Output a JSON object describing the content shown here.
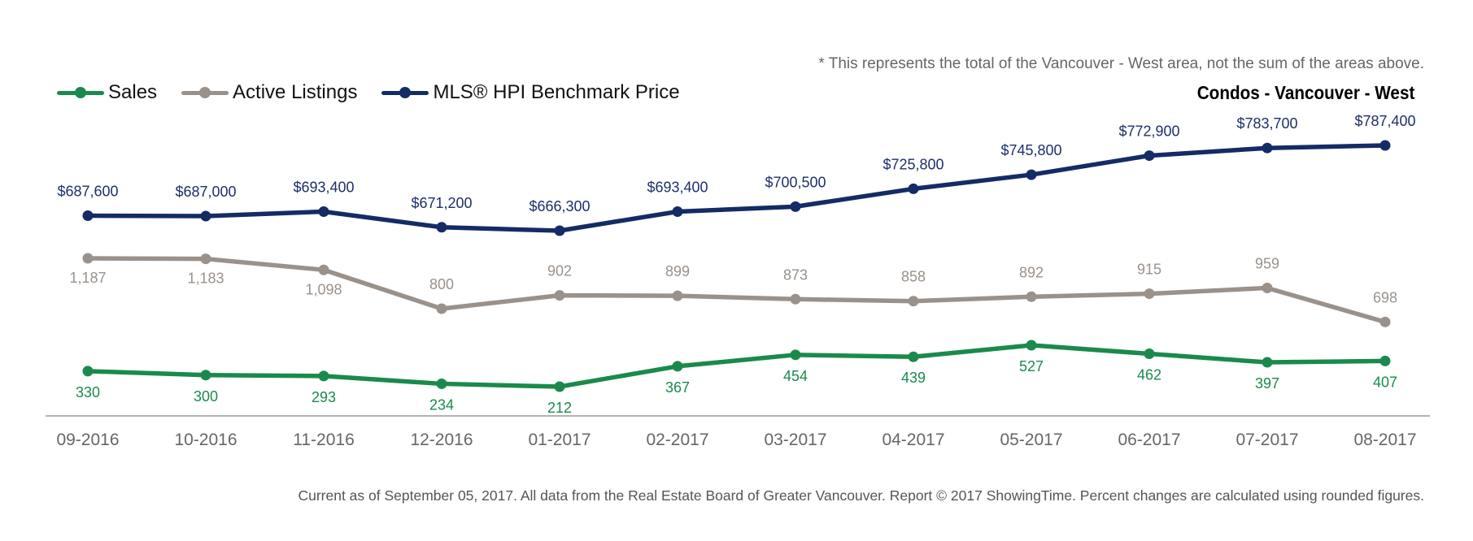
{
  "colors": {
    "sales": "#1a8a4c",
    "listings": "#9a918a",
    "price": "#142b65",
    "axis": "#999999",
    "tick_text": "#666666"
  },
  "header": {
    "note": "* This represents the total of the Vancouver - West area, not the sum of the areas above.",
    "subtitle": "Condos - Vancouver - West"
  },
  "legend": {
    "items": [
      {
        "label": "Sales",
        "color": "#1a8a4c"
      },
      {
        "label": "Active Listings",
        "color": "#9a918a"
      },
      {
        "label": "MLS® HPI Benchmark Price",
        "color": "#142b65"
      }
    ]
  },
  "footer": {
    "text": "Current as of September 05, 2017. All data from the Real Estate Board of Greater Vancouver. Report © 2017 ShowingTime. Percent changes are calculated using rounded figures."
  },
  "chart_data": {
    "type": "line",
    "title": "Condos - Vancouver - West",
    "legend_position": "top-left",
    "grid": false,
    "categories": [
      "09-2016",
      "10-2016",
      "11-2016",
      "12-2016",
      "01-2017",
      "02-2017",
      "03-2017",
      "04-2017",
      "05-2017",
      "06-2017",
      "07-2017",
      "08-2017"
    ],
    "series": [
      {
        "name": "MLS® HPI Benchmark Price",
        "values": [
          687600,
          687000,
          693400,
          671200,
          666300,
          693400,
          700500,
          725800,
          745800,
          772900,
          783700,
          787400
        ],
        "labels": [
          "$687,600",
          "$687,000",
          "$693,400",
          "$671,200",
          "$666,300",
          "$693,400",
          "$700,500",
          "$725,800",
          "$745,800",
          "$772,900",
          "$783,700",
          "$787,400"
        ]
      },
      {
        "name": "Active Listings",
        "values": [
          1187,
          1183,
          1098,
          800,
          902,
          899,
          873,
          858,
          892,
          915,
          959,
          698
        ],
        "labels": [
          "1,187",
          "1,183",
          "1,098",
          "800",
          "902",
          "899",
          "873",
          "858",
          "892",
          "915",
          "959",
          "698"
        ]
      },
      {
        "name": "Sales",
        "values": [
          330,
          300,
          293,
          234,
          212,
          367,
          454,
          439,
          527,
          462,
          397,
          407
        ],
        "labels": [
          "330",
          "300",
          "293",
          "234",
          "212",
          "367",
          "454",
          "439",
          "527",
          "462",
          "397",
          "407"
        ]
      }
    ]
  }
}
